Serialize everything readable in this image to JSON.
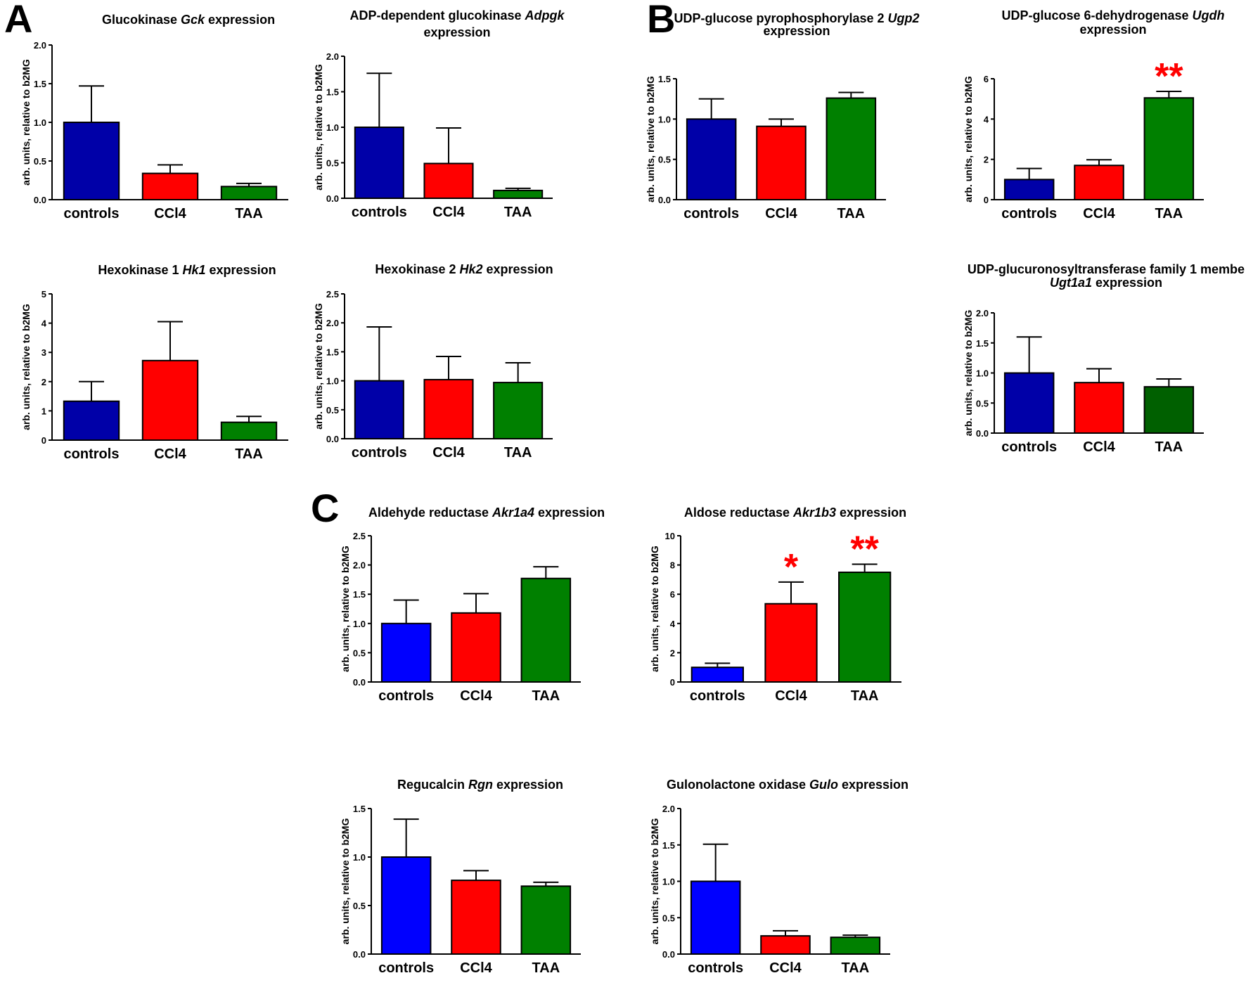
{
  "figure": {
    "panel_letters": [
      "A",
      "B",
      "C"
    ],
    "bar_colors": {
      "controls_dark": "#0000a8",
      "ccl4": "#ff0000",
      "taa": "#008000",
      "taa_dark": "#006000",
      "controls_bright": "#0000ff"
    },
    "significance_color": "#ff0000"
  },
  "chart_data": [
    {
      "type": "bar",
      "panel": "A",
      "title_parts": [
        "Glucokinase ",
        "Gck",
        " expression"
      ],
      "title": "Glucokinase Gck expression",
      "ylabel": "arb. units, relative to b2MG",
      "categories": [
        "controls",
        "CCl4",
        "TAA"
      ],
      "values": [
        1.0,
        0.34,
        0.17
      ],
      "errors": [
        0.47,
        0.11,
        0.04
      ],
      "significance": [
        "",
        "",
        ""
      ],
      "ylim": [
        0,
        2.0
      ],
      "yticks": [
        "0.0",
        "0.5",
        "1.0",
        "1.5",
        "2.0"
      ],
      "colors": [
        "#0000a8",
        "#ff0000",
        "#008000"
      ]
    },
    {
      "type": "bar",
      "panel": "A",
      "title_parts": [
        "ADP-dependent glucokinase ",
        "Adpgk",
        ""
      ],
      "title_line2": "expression",
      "title": "ADP-dependent glucokinase Adpgk expression",
      "ylabel": "arb. units, relative to b2MG",
      "categories": [
        "controls",
        "CCl4",
        "TAA"
      ],
      "values": [
        1.0,
        0.49,
        0.11
      ],
      "errors": [
        0.76,
        0.5,
        0.03
      ],
      "significance": [
        "",
        "",
        ""
      ],
      "ylim": [
        0,
        2.0
      ],
      "yticks": [
        "0.0",
        "0.5",
        "1.0",
        "1.5",
        "2.0"
      ],
      "colors": [
        "#0000a8",
        "#ff0000",
        "#008000"
      ]
    },
    {
      "type": "bar",
      "panel": "B",
      "title_parts": [
        "UDP-glucose pyrophosphorylase 2 ",
        "Ugp2",
        ""
      ],
      "title_line2": "expression",
      "title": "UDP-glucose pyrophosphorylase 2 Ugp2 expression",
      "ylabel": "arb. units, relative to b2MG",
      "categories": [
        "controls",
        "CCl4",
        "TAA"
      ],
      "values": [
        1.0,
        0.91,
        1.26
      ],
      "errors": [
        0.25,
        0.09,
        0.07
      ],
      "significance": [
        "",
        "",
        ""
      ],
      "ylim": [
        0,
        1.5
      ],
      "yticks": [
        "0.0",
        "0.5",
        "1.0",
        "1.5"
      ],
      "colors": [
        "#0000a8",
        "#ff0000",
        "#008000"
      ]
    },
    {
      "type": "bar",
      "panel": "B",
      "title_parts": [
        "UDP-glucose 6-dehydrogenase ",
        "Ugdh",
        ""
      ],
      "title_line2": "expression",
      "title": "UDP-glucose 6-dehydrogenase Ugdh expression",
      "ylabel": "arb. units, relative to b2MG",
      "categories": [
        "controls",
        "CCl4",
        "TAA"
      ],
      "values": [
        1.0,
        1.7,
        5.05
      ],
      "errors": [
        0.55,
        0.28,
        0.32
      ],
      "significance": [
        "",
        "",
        "**"
      ],
      "ylim": [
        0,
        6
      ],
      "yticks": [
        "0",
        "2",
        "4",
        "6"
      ],
      "colors": [
        "#0000a8",
        "#ff0000",
        "#008000"
      ]
    },
    {
      "type": "bar",
      "panel": "A",
      "title_parts": [
        "Hexokinase 1 ",
        "Hk1",
        " expression"
      ],
      "title": "Hexokinase 1 Hk1 expression",
      "ylabel": "arb. units, relative to b2MG",
      "categories": [
        "controls",
        "CCl4",
        "TAA"
      ],
      "values": [
        1.33,
        2.72,
        0.61
      ],
      "errors": [
        0.67,
        1.33,
        0.2
      ],
      "significance": [
        "",
        "",
        ""
      ],
      "ylim": [
        0,
        5
      ],
      "yticks": [
        "0",
        "1",
        "2",
        "3",
        "4",
        "5"
      ],
      "colors": [
        "#0000a8",
        "#ff0000",
        "#008000"
      ]
    },
    {
      "type": "bar",
      "panel": "A",
      "title_parts": [
        "Hexokinase 2 ",
        "Hk2",
        " expression"
      ],
      "title": "Hexokinase 2 Hk2 expression",
      "ylabel": "arb. units, relative to b2MG",
      "categories": [
        "controls",
        "CCl4",
        "TAA"
      ],
      "values": [
        1.0,
        1.02,
        0.97
      ],
      "errors": [
        0.93,
        0.4,
        0.34
      ],
      "significance": [
        "",
        "",
        ""
      ],
      "ylim": [
        0,
        2.5
      ],
      "yticks": [
        "0.0",
        "0.5",
        "1.0",
        "1.5",
        "2.0",
        "2.5"
      ],
      "colors": [
        "#0000a8",
        "#ff0000",
        "#008000"
      ]
    },
    {
      "type": "bar",
      "panel": "B",
      "title_parts": [
        "UDP-glucuronosyltransferase family 1 membe",
        "",
        ""
      ],
      "title_line2_italic": "Ugt1a1",
      "title_line2": " expression",
      "title": "UDP-glucuronosyltransferase family 1 membe Ugt1a1 expression",
      "ylabel": "arb. units, relative to b2MG",
      "categories": [
        "controls",
        "CCl4",
        "TAA"
      ],
      "values": [
        1.0,
        0.84,
        0.77
      ],
      "errors": [
        0.6,
        0.23,
        0.13
      ],
      "significance": [
        "",
        "",
        ""
      ],
      "ylim": [
        0,
        2.0
      ],
      "yticks": [
        "0.0",
        "0.5",
        "1.0",
        "1.5",
        "2.0"
      ],
      "colors": [
        "#0000a8",
        "#ff0000",
        "#006000"
      ]
    },
    {
      "type": "bar",
      "panel": "C",
      "title_parts": [
        "Aldehyde reductase ",
        "Akr1a4",
        " expression"
      ],
      "title": "Aldehyde reductase Akr1a4 expression",
      "ylabel": "arb. units, relative to b2MG",
      "categories": [
        "controls",
        "CCl4",
        "TAA"
      ],
      "values": [
        1.0,
        1.18,
        1.77
      ],
      "errors": [
        0.4,
        0.33,
        0.2
      ],
      "significance": [
        "",
        "",
        ""
      ],
      "ylim": [
        0,
        2.5
      ],
      "yticks": [
        "0.0",
        "0.5",
        "1.0",
        "1.5",
        "2.0",
        "2.5"
      ],
      "colors": [
        "#0000ff",
        "#ff0000",
        "#008000"
      ]
    },
    {
      "type": "bar",
      "panel": "C",
      "title_parts": [
        "Aldose reductase ",
        "Akr1b3",
        " expression"
      ],
      "title": "Aldose reductase Akr1b3 expression",
      "ylabel": "arb. units, relative to b2MG",
      "categories": [
        "controls",
        "CCl4",
        "TAA"
      ],
      "values": [
        1.0,
        5.35,
        7.5
      ],
      "errors": [
        0.28,
        1.48,
        0.55
      ],
      "significance": [
        "",
        "*",
        "**"
      ],
      "ylim": [
        0,
        10
      ],
      "yticks": [
        "0",
        "2",
        "4",
        "6",
        "8",
        "10"
      ],
      "colors": [
        "#0000ff",
        "#ff0000",
        "#008000"
      ]
    },
    {
      "type": "bar",
      "panel": "C",
      "title_parts": [
        "Regucalcin ",
        "Rgn",
        " expression"
      ],
      "title": "Regucalcin Rgn expression",
      "ylabel": "arb. units, relative to b2MG",
      "categories": [
        "controls",
        "CCl4",
        "TAA"
      ],
      "values": [
        1.0,
        0.76,
        0.7
      ],
      "errors": [
        0.39,
        0.1,
        0.04
      ],
      "significance": [
        "",
        "",
        ""
      ],
      "ylim": [
        0,
        1.5
      ],
      "yticks": [
        "0.0",
        "0.5",
        "1.0",
        "1.5"
      ],
      "colors": [
        "#0000ff",
        "#ff0000",
        "#008000"
      ]
    },
    {
      "type": "bar",
      "panel": "C",
      "title_parts": [
        "Gulonolactone oxidase ",
        "Gulo",
        " expression"
      ],
      "title": "Gulonolactone oxidase Gulo expression",
      "ylabel": "arb. units, relative to b2MG",
      "categories": [
        "controls",
        "CCl4",
        "TAA"
      ],
      "values": [
        1.0,
        0.25,
        0.23
      ],
      "errors": [
        0.51,
        0.07,
        0.03
      ],
      "significance": [
        "",
        "",
        ""
      ],
      "ylim": [
        0,
        2.0
      ],
      "yticks": [
        "0.0",
        "0.5",
        "1.0",
        "1.5",
        "2.0"
      ],
      "colors": [
        "#0000ff",
        "#ff0000",
        "#008000"
      ]
    }
  ]
}
